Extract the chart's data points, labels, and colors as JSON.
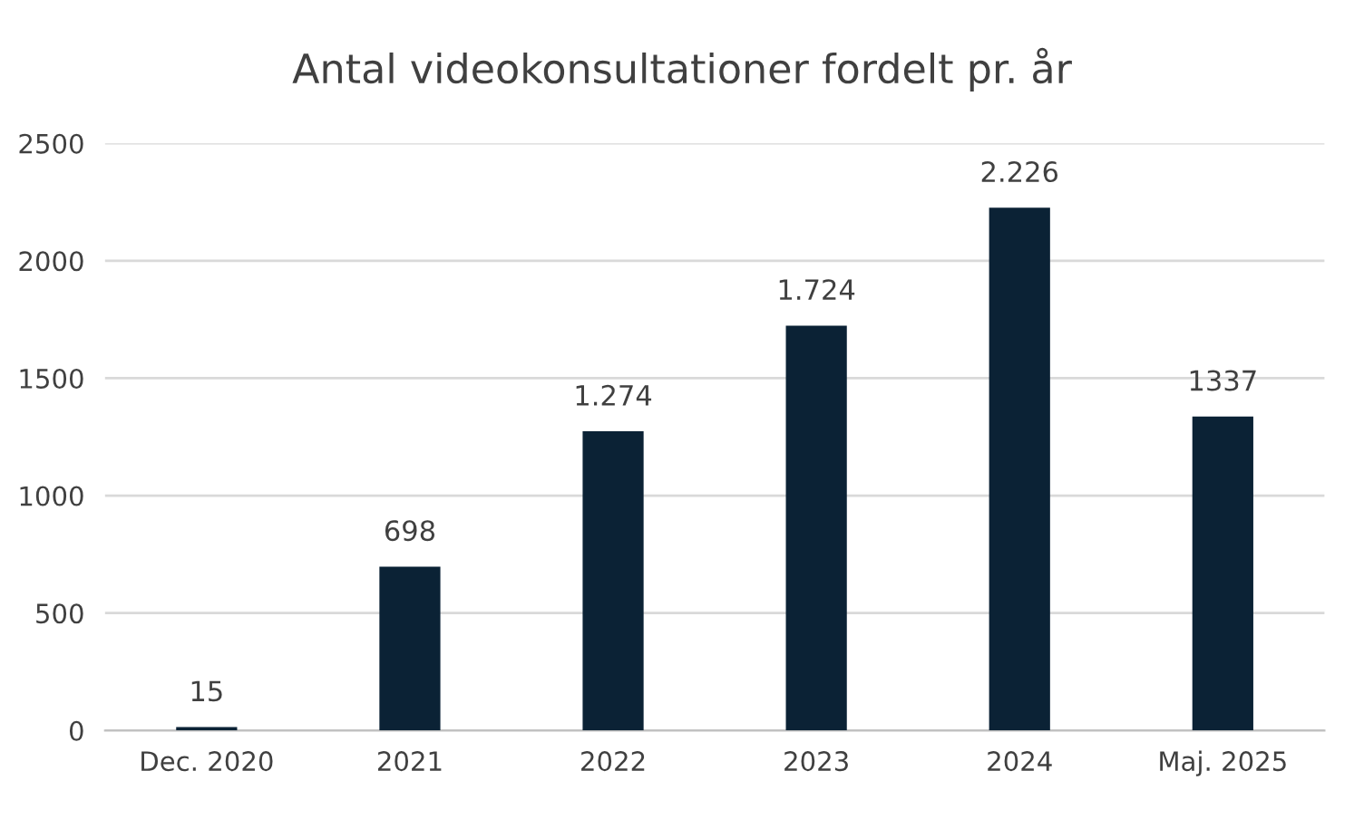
{
  "chart_data": {
    "type": "bar",
    "title": "Antal videokonsultationer fordelt pr. år",
    "categories": [
      "Dec. 2020",
      "2021",
      "2022",
      "2023",
      "2024",
      "Maj. 2025"
    ],
    "values": [
      15,
      698,
      1274,
      1724,
      2226,
      1337
    ],
    "value_labels": [
      "15",
      "698",
      "1.274",
      "1.724",
      "2.226",
      "1337"
    ],
    "color": "#0b2235",
    "ylim": [
      0,
      2500
    ],
    "yticks": [
      0,
      500,
      1000,
      1500,
      2000,
      2500
    ],
    "grid": "y",
    "legend": false
  }
}
